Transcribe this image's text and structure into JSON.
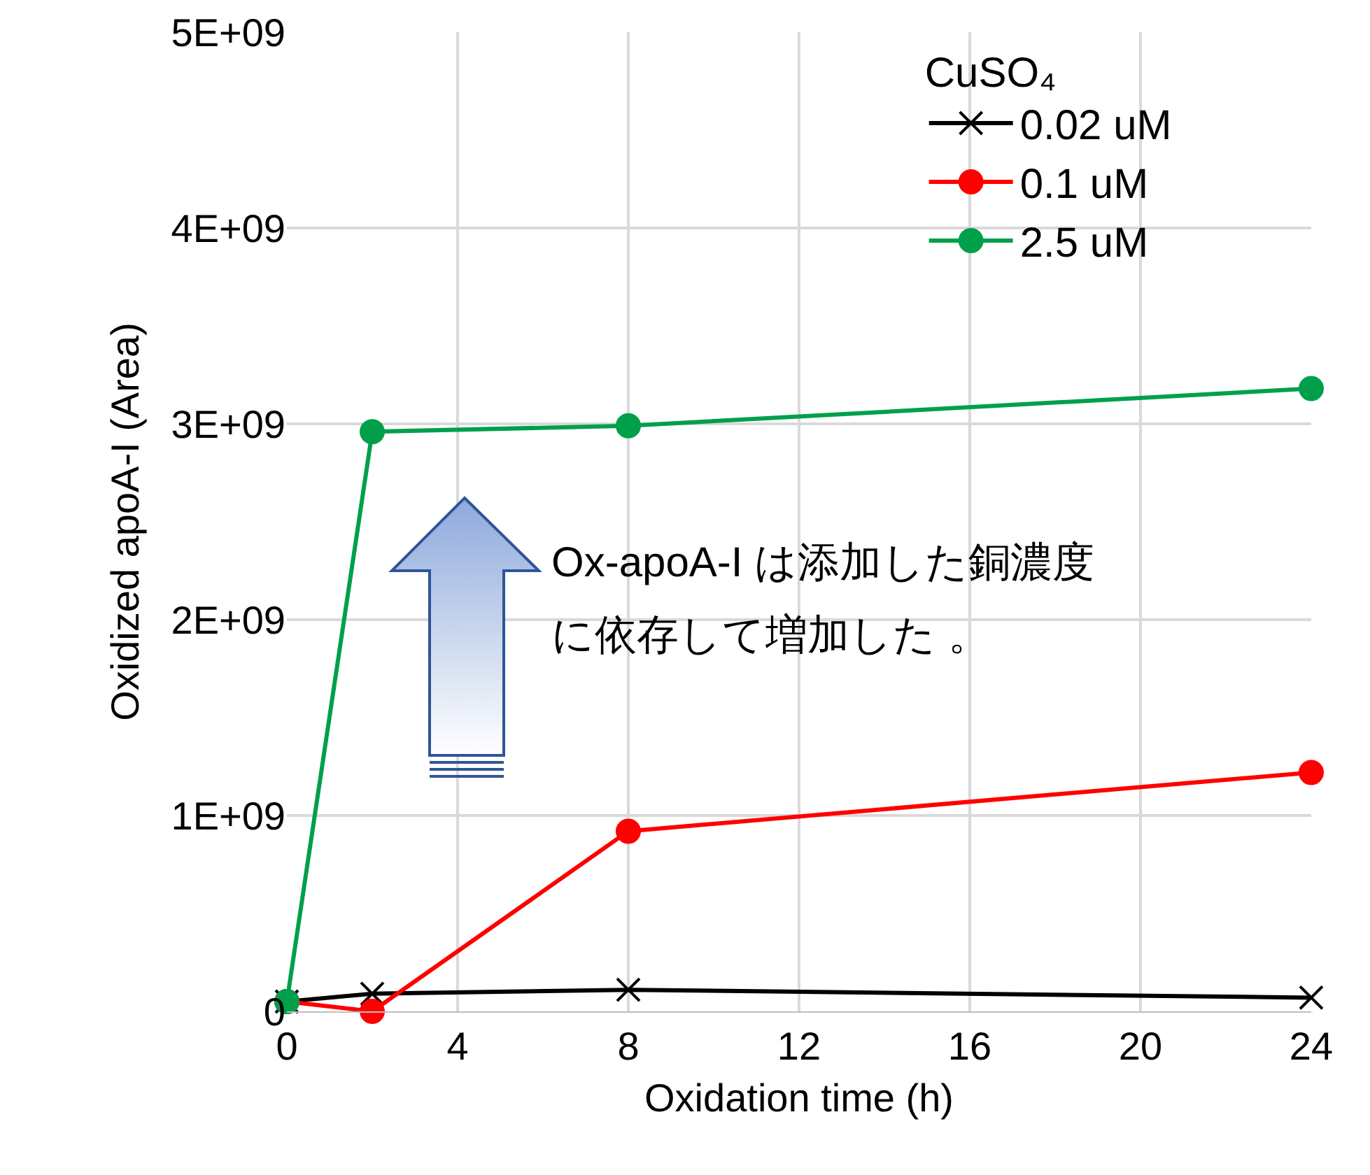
{
  "chart_data": {
    "type": "line",
    "xlabel": "Oxidation time (h)",
    "ylabel": "Oxidized apoA-I (Area)",
    "legend_title": "CuSO₄",
    "x": [
      0,
      2,
      8,
      24
    ],
    "series": [
      {
        "name": "0.02 uM",
        "color": "#000000",
        "marker": "cross",
        "values": [
          50000000,
          90000000,
          110000000,
          70000000
        ]
      },
      {
        "name": "0.1 uM",
        "color": "#ff0000",
        "marker": "circle",
        "values": [
          50000000,
          0,
          920000000,
          1220000000
        ]
      },
      {
        "name": "2.5 uM",
        "color": "#00a04b",
        "marker": "circle",
        "values": [
          50000000,
          2960000000,
          2990000000,
          3180000000
        ]
      }
    ],
    "xlim": [
      0,
      24
    ],
    "xticks": [
      0,
      4,
      8,
      12,
      16,
      20,
      24
    ],
    "ylim": [
      0,
      5000000000
    ],
    "yticks": [
      {
        "value": 0,
        "label": "0"
      },
      {
        "value": 1000000000,
        "label": "1E+09"
      },
      {
        "value": 2000000000,
        "label": "2E+09"
      },
      {
        "value": 3000000000,
        "label": "3E+09"
      },
      {
        "value": 4000000000,
        "label": "4E+09"
      },
      {
        "value": 5000000000,
        "label": "5E+09"
      }
    ],
    "grid": true,
    "legend": "top right",
    "line_style": "solid",
    "annotations": [
      "Ox-apoA-I は添加した銅濃度",
      "に依存して増加した 。"
    ]
  }
}
